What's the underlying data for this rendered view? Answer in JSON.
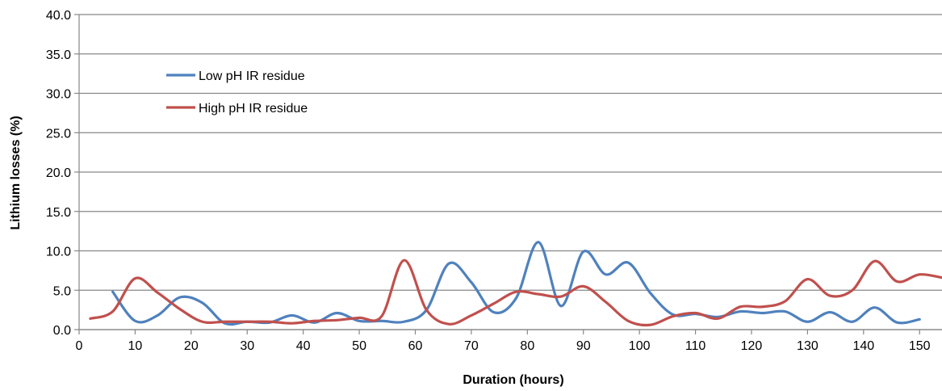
{
  "chart_data": {
    "type": "line",
    "title": "",
    "xlabel": "Duration (hours)",
    "ylabel": "Lithium losses (%)",
    "xlim": [
      0,
      154
    ],
    "ylim": [
      0,
      40
    ],
    "x_ticks": [
      "0",
      "10",
      "20",
      "30",
      "40",
      "50",
      "60",
      "70",
      "80",
      "90",
      "100",
      "110",
      "120",
      "130",
      "140",
      "150"
    ],
    "y_ticks": [
      "0.0",
      "5.0",
      "10.0",
      "15.0",
      "20.0",
      "25.0",
      "30.0",
      "35.0",
      "40.0"
    ],
    "grid": "horizontal",
    "legend_position": "upper-left",
    "series": [
      {
        "name": "Low pH IR residue",
        "color": "#4f81bd",
        "x": [
          6,
          10,
          14,
          18,
          22,
          26,
          30,
          34,
          38,
          42,
          46,
          50,
          54,
          58,
          62,
          66,
          70,
          74,
          78,
          82,
          86,
          90,
          94,
          98,
          102,
          106,
          110,
          114,
          118,
          122,
          126,
          130,
          134,
          138,
          142,
          146,
          150
        ],
        "y": [
          4.8,
          1.1,
          1.8,
          4.1,
          3.4,
          0.8,
          1.0,
          0.9,
          1.8,
          0.9,
          2.1,
          1.1,
          1.1,
          1.0,
          2.5,
          8.4,
          6.0,
          2.2,
          4.0,
          11.1,
          3.0,
          9.9,
          7.0,
          8.5,
          4.6,
          1.9,
          2.0,
          1.6,
          2.3,
          2.1,
          2.3,
          1.0,
          2.2,
          1.0,
          2.8,
          0.9,
          1.3
        ]
      },
      {
        "name": "High pH IR residue",
        "color": "#c0504d",
        "x": [
          2,
          6,
          10,
          14,
          18,
          22,
          26,
          30,
          34,
          38,
          42,
          46,
          50,
          54,
          58,
          62,
          66,
          70,
          74,
          78,
          82,
          86,
          90,
          94,
          98,
          102,
          106,
          110,
          114,
          118,
          122,
          126,
          130,
          134,
          138,
          142,
          146,
          150,
          154
        ],
        "y": [
          1.4,
          2.3,
          6.5,
          4.7,
          2.6,
          1.0,
          1.0,
          1.0,
          1.0,
          0.8,
          1.1,
          1.2,
          1.5,
          1.7,
          8.8,
          2.5,
          0.7,
          1.8,
          3.3,
          4.8,
          4.5,
          4.2,
          5.5,
          3.5,
          1.1,
          0.6,
          1.7,
          2.1,
          1.4,
          2.9,
          2.9,
          3.6,
          6.4,
          4.3,
          5.0,
          8.7,
          6.1,
          7.0,
          6.6
        ]
      }
    ]
  }
}
